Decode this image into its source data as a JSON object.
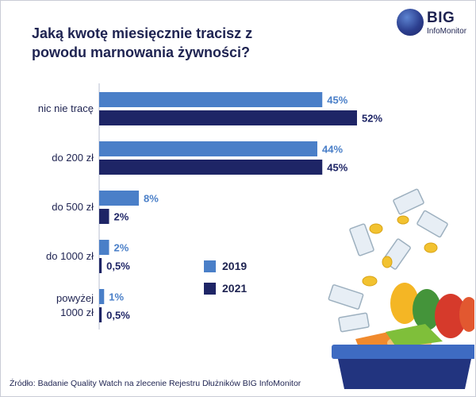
{
  "title": "Jaką kwotę miesięcznie tracisz z powodu marnowania żywności?",
  "logo": {
    "big": "BIG",
    "sub": "InfoMonitor"
  },
  "source": "Źródło: Badanie Quality Watch na zlecenie Rejestru Dłużników BIG InfoMonitor",
  "colors": {
    "2019": "#4a7fc8",
    "2021": "#1e2566",
    "text": "#1e2351"
  },
  "chart_data": {
    "type": "bar",
    "orientation": "horizontal",
    "title": "Jaką kwotę miesięcznie tracisz z powodu marnowania żywności?",
    "categories": [
      "nic nie tracę",
      "do 200 zł",
      "do 500 zł",
      "do 1000 zł",
      "powyżej 1000 zł"
    ],
    "category_lines": [
      [
        "nic nie tracę"
      ],
      [
        "do 200 zł"
      ],
      [
        "do 500 zł"
      ],
      [
        "do 1000 zł"
      ],
      [
        "powyżej",
        "1000 zł"
      ]
    ],
    "series": [
      {
        "name": "2019",
        "values": [
          45,
          44,
          8,
          2,
          1
        ],
        "labels": [
          "45%",
          "44%",
          "8%",
          "2%",
          "1%"
        ]
      },
      {
        "name": "2021",
        "values": [
          52,
          45,
          2,
          0.5,
          0.5
        ],
        "labels": [
          "52%",
          "45%",
          "2%",
          "0,5%",
          "0,5%"
        ]
      }
    ],
    "unit": "%",
    "legend": [
      "2019",
      "2021"
    ],
    "legend_position": "center",
    "grid": false
  }
}
